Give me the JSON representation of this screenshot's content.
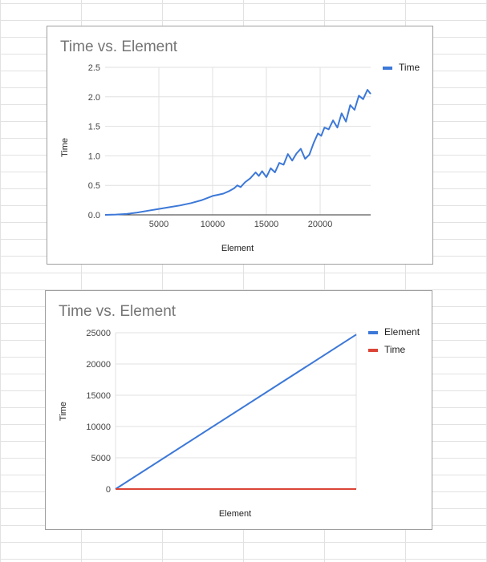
{
  "charts": [
    {
      "type": "line",
      "title": "Time vs. Element",
      "xlabel": "Element",
      "ylabel": "Time",
      "xlim": [
        0,
        24700
      ],
      "ylim": [
        0,
        2.5
      ],
      "x_ticks": [
        5000,
        10000,
        15000,
        20000
      ],
      "x_tick_labels": [
        "5000",
        "10000",
        "15000",
        "20000"
      ],
      "y_ticks": [
        0,
        0.5,
        1.0,
        1.5,
        2.0,
        2.5
      ],
      "y_tick_labels": [
        "0.0",
        "0.5",
        "1.0",
        "1.5",
        "2.0",
        "2.5"
      ],
      "grid": true,
      "legend_position": "top-right",
      "series": [
        {
          "name": "Time",
          "color": "#3c78d8",
          "x": [
            0,
            1000,
            2000,
            3000,
            4000,
            5000,
            6000,
            7000,
            8000,
            9000,
            10000,
            10500,
            11000,
            11500,
            12000,
            12300,
            12600,
            13000,
            13500,
            14000,
            14300,
            14600,
            15000,
            15400,
            15800,
            16200,
            16600,
            17000,
            17400,
            17800,
            18200,
            18600,
            19000,
            19400,
            19800,
            20100,
            20400,
            20800,
            21200,
            21600,
            22000,
            22400,
            22800,
            23200,
            23600,
            24000,
            24400,
            24700
          ],
          "y": [
            0.0,
            0.005,
            0.015,
            0.04,
            0.07,
            0.1,
            0.13,
            0.16,
            0.2,
            0.25,
            0.32,
            0.34,
            0.36,
            0.4,
            0.45,
            0.5,
            0.47,
            0.55,
            0.62,
            0.72,
            0.66,
            0.74,
            0.64,
            0.79,
            0.72,
            0.88,
            0.85,
            1.03,
            0.92,
            1.04,
            1.12,
            0.95,
            1.02,
            1.22,
            1.38,
            1.34,
            1.48,
            1.45,
            1.6,
            1.48,
            1.72,
            1.58,
            1.86,
            1.78,
            2.02,
            1.96,
            2.12,
            2.05
          ]
        }
      ]
    },
    {
      "type": "line",
      "title": "Time vs. Element",
      "xlabel": "Element",
      "ylabel": "Time",
      "xlim": [
        0,
        24700
      ],
      "ylim": [
        0,
        25000
      ],
      "y_ticks": [
        0,
        5000,
        10000,
        15000,
        20000,
        25000
      ],
      "y_tick_labels": [
        "0",
        "5000",
        "10000",
        "15000",
        "20000",
        "25000"
      ],
      "grid": true,
      "legend_position": "top-right",
      "series": [
        {
          "name": "Element",
          "color": "#3c78d8",
          "x": [
            0,
            24700
          ],
          "y": [
            0,
            24700
          ]
        },
        {
          "name": "Time",
          "color": "#db4437",
          "x": [
            0,
            24700
          ],
          "y": [
            0,
            2.1
          ]
        }
      ]
    }
  ]
}
